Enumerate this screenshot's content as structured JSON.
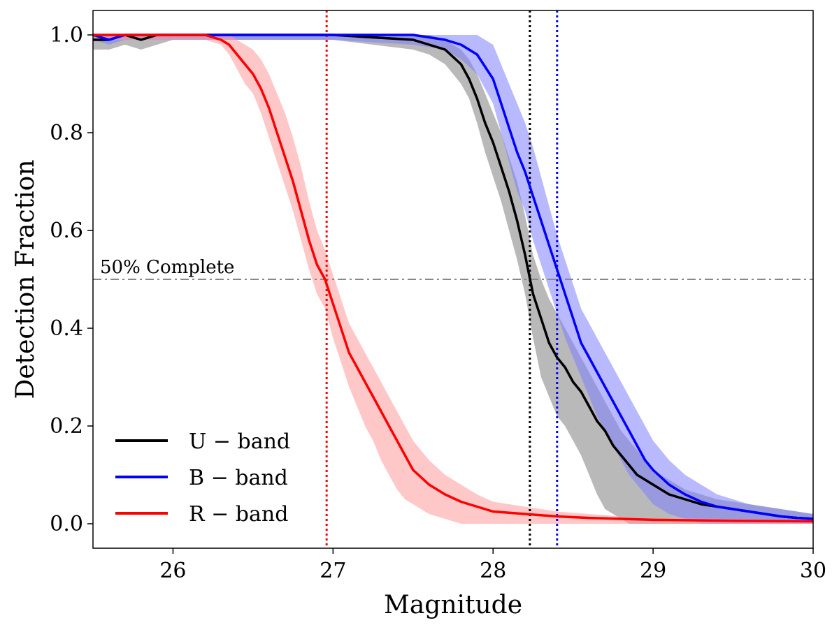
{
  "chart_data": {
    "type": "line",
    "xlabel": "Magnitude",
    "ylabel": "Detection Fraction",
    "xlim": [
      25.5,
      30.0
    ],
    "ylim": [
      -0.05,
      1.05
    ],
    "xticks": [
      26,
      27,
      28,
      29,
      30
    ],
    "xtick_labels": [
      "26",
      "27",
      "28",
      "29",
      "30"
    ],
    "yticks": [
      0.0,
      0.2,
      0.4,
      0.6,
      0.8,
      1.0
    ],
    "ytick_labels": [
      "0.0",
      "0.2",
      "0.4",
      "0.6",
      "0.8",
      "1.0"
    ],
    "grid": false,
    "legend_position": "bottom-left",
    "hline": {
      "y": 0.5,
      "color": "#888888",
      "style": "dash-dot",
      "label": "50% Complete"
    },
    "vlines": [
      {
        "x": 26.96,
        "color": "#ff0000",
        "style": "dotted"
      },
      {
        "x": 28.23,
        "color": "#000000",
        "style": "dotted"
      },
      {
        "x": 28.4,
        "color": "#0000ff",
        "style": "dotted"
      }
    ],
    "series": [
      {
        "name": "U − band",
        "color": "#000000",
        "band_color": "#808080",
        "x": [
          25.5,
          25.6,
          25.7,
          25.8,
          25.9,
          26.0,
          26.5,
          27.0,
          27.5,
          27.6,
          27.7,
          27.8,
          27.85,
          27.9,
          27.95,
          28.0,
          28.05,
          28.1,
          28.15,
          28.2,
          28.25,
          28.3,
          28.35,
          28.4,
          28.45,
          28.5,
          28.55,
          28.6,
          28.65,
          28.7,
          28.75,
          28.8,
          28.85,
          28.9,
          28.95,
          29.0,
          29.1,
          29.2,
          29.3,
          29.4,
          29.5,
          29.6,
          29.7,
          29.8,
          29.9,
          30.0
        ],
        "y": [
          0.99,
          0.99,
          1.0,
          0.99,
          1.0,
          1.0,
          1.0,
          1.0,
          0.99,
          0.98,
          0.97,
          0.94,
          0.91,
          0.87,
          0.82,
          0.78,
          0.73,
          0.68,
          0.62,
          0.55,
          0.47,
          0.42,
          0.37,
          0.34,
          0.32,
          0.29,
          0.27,
          0.24,
          0.21,
          0.19,
          0.16,
          0.14,
          0.12,
          0.1,
          0.09,
          0.08,
          0.06,
          0.05,
          0.04,
          0.035,
          0.03,
          0.025,
          0.02,
          0.015,
          0.012,
          0.01
        ],
        "lower": [
          0.97,
          0.97,
          0.98,
          0.97,
          0.98,
          0.99,
          0.99,
          0.99,
          0.97,
          0.96,
          0.94,
          0.9,
          0.87,
          0.82,
          0.76,
          0.71,
          0.66,
          0.6,
          0.54,
          0.47,
          0.38,
          0.3,
          0.26,
          0.22,
          0.2,
          0.17,
          0.14,
          0.1,
          0.06,
          0.03,
          0.02,
          0.01,
          0.0,
          0.0,
          0.0,
          0.0,
          0.0,
          0.0,
          0.0,
          0.0,
          0.0,
          0.0,
          0.0,
          0.0,
          0.0,
          0.0
        ],
        "upper": [
          1.0,
          1.0,
          1.0,
          1.0,
          1.0,
          1.0,
          1.0,
          1.0,
          1.0,
          1.0,
          0.99,
          0.97,
          0.95,
          0.92,
          0.88,
          0.84,
          0.8,
          0.75,
          0.7,
          0.63,
          0.55,
          0.5,
          0.46,
          0.43,
          0.4,
          0.37,
          0.34,
          0.31,
          0.28,
          0.25,
          0.22,
          0.19,
          0.17,
          0.15,
          0.13,
          0.11,
          0.09,
          0.07,
          0.06,
          0.05,
          0.045,
          0.04,
          0.035,
          0.03,
          0.025,
          0.02
        ]
      },
      {
        "name": "B − band",
        "color": "#0000ff",
        "band_color": "#7f7fff",
        "x": [
          25.5,
          25.6,
          25.7,
          25.8,
          26.0,
          26.5,
          27.0,
          27.5,
          27.7,
          27.8,
          27.9,
          28.0,
          28.05,
          28.1,
          28.15,
          28.2,
          28.25,
          28.3,
          28.35,
          28.4,
          28.45,
          28.5,
          28.55,
          28.6,
          28.65,
          28.7,
          28.75,
          28.8,
          28.85,
          28.9,
          28.95,
          29.0,
          29.1,
          29.2,
          29.3,
          29.4,
          29.5,
          29.6,
          29.7,
          29.8,
          29.9,
          30.0
        ],
        "y": [
          1.0,
          0.99,
          1.0,
          1.0,
          1.0,
          1.0,
          1.0,
          1.0,
          0.99,
          0.98,
          0.96,
          0.91,
          0.86,
          0.81,
          0.76,
          0.72,
          0.67,
          0.62,
          0.57,
          0.52,
          0.47,
          0.42,
          0.37,
          0.34,
          0.31,
          0.28,
          0.25,
          0.22,
          0.19,
          0.16,
          0.13,
          0.11,
          0.08,
          0.06,
          0.045,
          0.035,
          0.03,
          0.025,
          0.02,
          0.015,
          0.012,
          0.01
        ],
        "lower": [
          0.99,
          0.98,
          0.99,
          0.99,
          0.99,
          0.99,
          0.99,
          0.98,
          0.97,
          0.95,
          0.92,
          0.86,
          0.8,
          0.74,
          0.68,
          0.64,
          0.58,
          0.53,
          0.48,
          0.43,
          0.38,
          0.34,
          0.3,
          0.26,
          0.22,
          0.19,
          0.16,
          0.13,
          0.1,
          0.08,
          0.06,
          0.04,
          0.02,
          0.01,
          0.0,
          0.0,
          0.0,
          0.0,
          0.0,
          0.0,
          0.0,
          0.0
        ],
        "upper": [
          1.0,
          1.0,
          1.0,
          1.0,
          1.0,
          1.0,
          1.0,
          1.0,
          1.0,
          1.0,
          1.0,
          0.98,
          0.94,
          0.9,
          0.86,
          0.82,
          0.77,
          0.71,
          0.65,
          0.59,
          0.54,
          0.49,
          0.44,
          0.41,
          0.38,
          0.35,
          0.32,
          0.29,
          0.26,
          0.23,
          0.2,
          0.17,
          0.13,
          0.1,
          0.08,
          0.06,
          0.05,
          0.04,
          0.035,
          0.03,
          0.025,
          0.02
        ]
      },
      {
        "name": "R − band",
        "color": "#ff0000",
        "band_color": "#ff9a9a",
        "x": [
          25.5,
          25.8,
          26.0,
          26.2,
          26.3,
          26.35,
          26.4,
          26.45,
          26.5,
          26.55,
          26.6,
          26.65,
          26.7,
          26.75,
          26.8,
          26.85,
          26.9,
          26.95,
          27.0,
          27.05,
          27.1,
          27.15,
          27.2,
          27.25,
          27.3,
          27.35,
          27.4,
          27.45,
          27.5,
          27.6,
          27.7,
          27.8,
          27.9,
          28.0,
          28.2,
          28.4,
          28.6,
          28.8,
          29.0,
          29.5,
          30.0
        ],
        "y": [
          1.0,
          1.0,
          1.0,
          1.0,
          0.99,
          0.98,
          0.96,
          0.94,
          0.92,
          0.89,
          0.85,
          0.8,
          0.75,
          0.7,
          0.64,
          0.58,
          0.53,
          0.5,
          0.45,
          0.4,
          0.35,
          0.32,
          0.29,
          0.26,
          0.23,
          0.2,
          0.17,
          0.14,
          0.11,
          0.08,
          0.06,
          0.045,
          0.035,
          0.025,
          0.02,
          0.015,
          0.012,
          0.01,
          0.008,
          0.006,
          0.005
        ],
        "lower": [
          0.99,
          0.99,
          0.99,
          0.99,
          0.98,
          0.96,
          0.93,
          0.9,
          0.88,
          0.84,
          0.79,
          0.74,
          0.69,
          0.64,
          0.58,
          0.52,
          0.47,
          0.44,
          0.38,
          0.33,
          0.28,
          0.24,
          0.2,
          0.17,
          0.13,
          0.1,
          0.07,
          0.05,
          0.04,
          0.02,
          0.01,
          0.0,
          0.0,
          0.0,
          0.0,
          0.0,
          0.0,
          0.0,
          0.0,
          0.0,
          0.0
        ],
        "upper": [
          1.0,
          1.0,
          1.0,
          1.0,
          1.0,
          1.0,
          0.99,
          0.98,
          0.97,
          0.95,
          0.92,
          0.88,
          0.84,
          0.79,
          0.73,
          0.66,
          0.6,
          0.56,
          0.51,
          0.46,
          0.41,
          0.38,
          0.35,
          0.32,
          0.29,
          0.26,
          0.23,
          0.2,
          0.17,
          0.13,
          0.1,
          0.08,
          0.06,
          0.045,
          0.035,
          0.025,
          0.02,
          0.015,
          0.012,
          0.01,
          0.008
        ]
      }
    ]
  }
}
